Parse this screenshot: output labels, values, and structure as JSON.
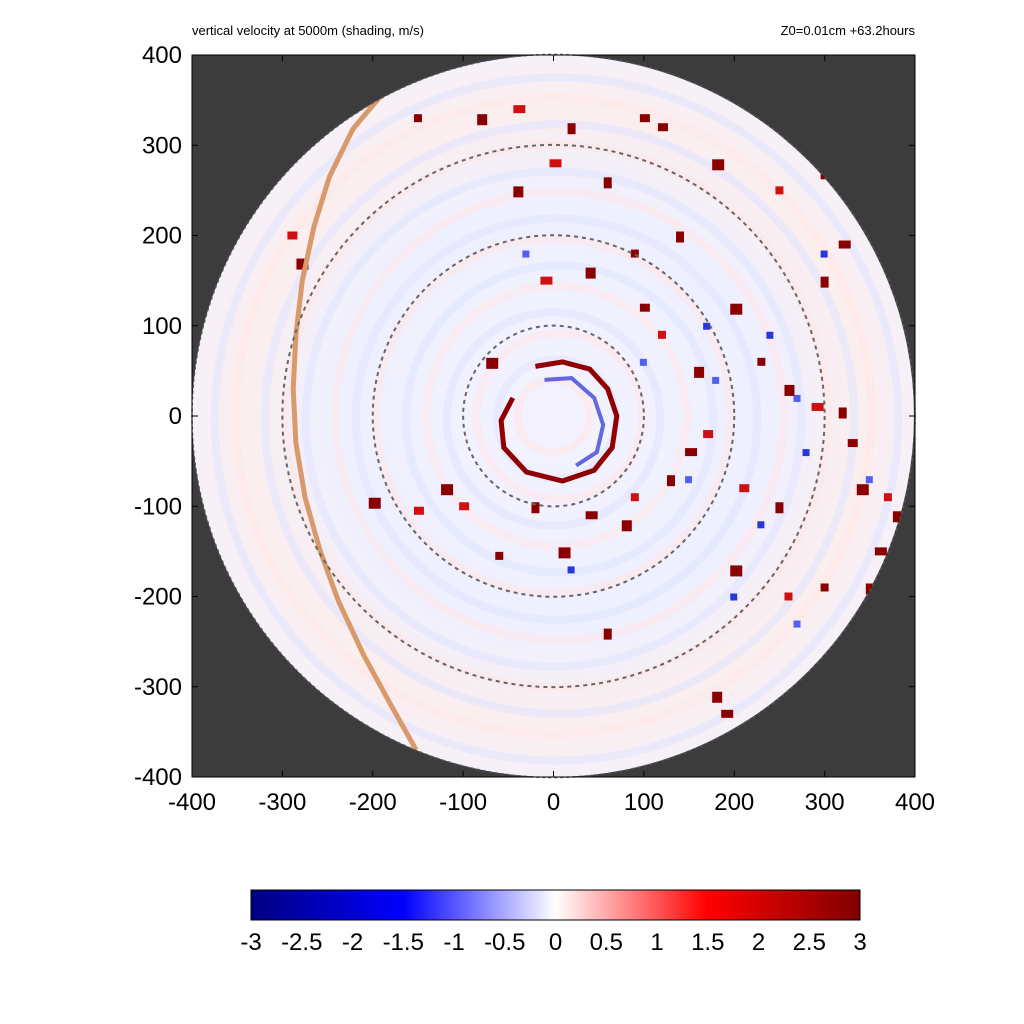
{
  "chart_data": {
    "type": "heatmap",
    "title": "vertical velocity at 5000m (shading, m/s)",
    "subtitle": "Z0=0.01cm  +63.2hours",
    "xlabel": "",
    "ylabel": "",
    "xlim": [
      -400,
      400
    ],
    "ylim": [
      -400,
      400
    ],
    "x_ticks": [
      "-400",
      "-300",
      "-200",
      "-100",
      "0",
      "100",
      "200",
      "300",
      "400"
    ],
    "y_ticks": [
      "400",
      "300",
      "200",
      "100",
      "0",
      "-100",
      "-200",
      "-300",
      "-400"
    ],
    "domain_radius": 400,
    "range_rings": [
      100,
      200,
      300
    ],
    "colorbar": {
      "min": -3,
      "max": 3,
      "labels": [
        "-3",
        "-2.5",
        "-2",
        "-1.5",
        "-1",
        "-0.5",
        "0",
        "0.5",
        "1",
        "1.5",
        "2",
        "2.5",
        "3"
      ],
      "colors": [
        "#000080",
        "#0000ff",
        "#ffffff",
        "#ff0000",
        "#800000"
      ]
    },
    "background_color": "#3c3c3c",
    "coastline_color": "#d89a6a",
    "coastline": [
      [
        -152,
        -370
      ],
      [
        -180,
        -320
      ],
      [
        -210,
        -265
      ],
      [
        -238,
        -205
      ],
      [
        -258,
        -150
      ],
      [
        -275,
        -90
      ],
      [
        -285,
        -30
      ],
      [
        -288,
        30
      ],
      [
        -285,
        90
      ],
      [
        -278,
        150
      ],
      [
        -265,
        210
      ],
      [
        -248,
        265
      ],
      [
        -222,
        318
      ],
      [
        -195,
        350
      ],
      [
        -160,
        385
      ]
    ],
    "eyewall_updraft": [
      [
        -20,
        55
      ],
      [
        10,
        60
      ],
      [
        40,
        52
      ],
      [
        60,
        30
      ],
      [
        70,
        0
      ],
      [
        65,
        -35
      ],
      [
        45,
        -60
      ],
      [
        10,
        -72
      ],
      [
        -30,
        -62
      ],
      [
        -55,
        -35
      ],
      [
        -58,
        -5
      ],
      [
        -45,
        20
      ]
    ],
    "eyewall_downdraft": [
      [
        -10,
        40
      ],
      [
        20,
        42
      ],
      [
        45,
        20
      ],
      [
        55,
        -10
      ],
      [
        48,
        -40
      ],
      [
        25,
        -55
      ]
    ],
    "convective_cells": [
      [
        120,
        90
      ],
      [
        160,
        50
      ],
      [
        150,
        -40
      ],
      [
        130,
        -70
      ],
      [
        170,
        -20
      ],
      [
        200,
        120
      ],
      [
        230,
        60
      ],
      [
        260,
        30
      ],
      [
        290,
        10
      ],
      [
        320,
        5
      ],
      [
        330,
        -30
      ],
      [
        340,
        -80
      ],
      [
        370,
        -90
      ],
      [
        380,
        -110
      ],
      [
        360,
        -150
      ],
      [
        250,
        -100
      ],
      [
        210,
        -80
      ],
      [
        10,
        -150
      ],
      [
        -60,
        -155
      ],
      [
        -40,
        250
      ],
      [
        0,
        280
      ],
      [
        60,
        260
      ],
      [
        120,
        320
      ],
      [
        180,
        280
      ],
      [
        250,
        250
      ],
      [
        300,
        270
      ],
      [
        320,
        190
      ],
      [
        300,
        150
      ],
      [
        -290,
        200
      ],
      [
        -280,
        170
      ],
      [
        -150,
        330
      ],
      [
        -80,
        330
      ],
      [
        -40,
        340
      ],
      [
        20,
        320
      ],
      [
        100,
        330
      ],
      [
        200,
        -170
      ],
      [
        260,
        -200
      ],
      [
        180,
        -310
      ],
      [
        190,
        -330
      ],
      [
        60,
        -240
      ],
      [
        -100,
        -100
      ],
      [
        -120,
        -80
      ],
      [
        90,
        180
      ],
      [
        40,
        160
      ],
      [
        -10,
        150
      ],
      [
        140,
        200
      ],
      [
        100,
        120
      ],
      [
        -70,
        60
      ],
      [
        90,
        -90
      ],
      [
        80,
        -120
      ],
      [
        40,
        -110
      ],
      [
        -20,
        -100
      ],
      [
        -150,
        -105
      ],
      [
        -200,
        -95
      ],
      [
        300,
        -190
      ],
      [
        350,
        -190
      ]
    ],
    "downdraft_cells": [
      [
        180,
        40
      ],
      [
        240,
        90
      ],
      [
        270,
        20
      ],
      [
        280,
        -40
      ],
      [
        350,
        -70
      ],
      [
        230,
        -120
      ],
      [
        150,
        -70
      ],
      [
        20,
        -170
      ],
      [
        -30,
        180
      ],
      [
        170,
        100
      ],
      [
        100,
        60
      ],
      [
        200,
        -200
      ],
      [
        270,
        -230
      ],
      [
        300,
        180
      ]
    ]
  }
}
